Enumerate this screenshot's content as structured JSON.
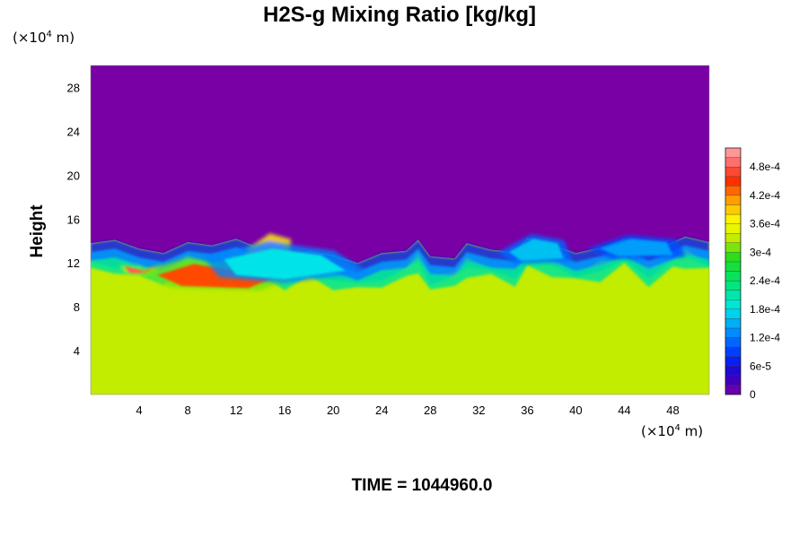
{
  "chart_data": {
    "type": "heatmap",
    "title": "H2S-g Mixing Ratio [kg/kg]",
    "xlabel": "",
    "ylabel": "Height",
    "x_unit_prefix": "(×10",
    "x_unit_exp": "4",
    "x_unit_suffix": " m)",
    "y_unit_prefix": "(×10",
    "y_unit_exp": "4",
    "y_unit_suffix": " m)",
    "xlim": [
      0,
      51
    ],
    "ylim": [
      0,
      30
    ],
    "x_ticks": [
      "4",
      "8",
      "12",
      "16",
      "20",
      "24",
      "28",
      "32",
      "36",
      "40",
      "44",
      "48"
    ],
    "y_ticks": [
      "4",
      "8",
      "12",
      "16",
      "20",
      "24",
      "28"
    ],
    "colorbar": {
      "min": 0,
      "max": 0.00052,
      "labels": [
        "0",
        "6e-5",
        "1.2e-4",
        "1.8e-4",
        "2.4e-4",
        "3e-4",
        "3.6e-4",
        "4.2e-4",
        "4.8e-4"
      ],
      "label_values": [
        0,
        6e-05,
        0.00012,
        0.00018,
        0.00024,
        0.0003,
        0.00036,
        0.00042,
        0.00048
      ]
    },
    "field": {
      "upper_value": 0,
      "lower_value": 0.00033,
      "interface_height": 13.5,
      "features": [
        {
          "x": 4,
          "y": 11.3,
          "value": 0.00048
        },
        {
          "x": 10,
          "y": 10.3,
          "value": 0.00044
        },
        {
          "x": 14.5,
          "y": 12.8,
          "value": 0.00052
        },
        {
          "x": 16,
          "y": 11.5,
          "value": 0.00018
        },
        {
          "x": 37,
          "y": 13,
          "value": 0.00016
        },
        {
          "x": 45,
          "y": 13.2,
          "value": 0.00014
        }
      ]
    },
    "grid": false
  },
  "footer": {
    "time_label": "TIME = 1044960.0"
  }
}
